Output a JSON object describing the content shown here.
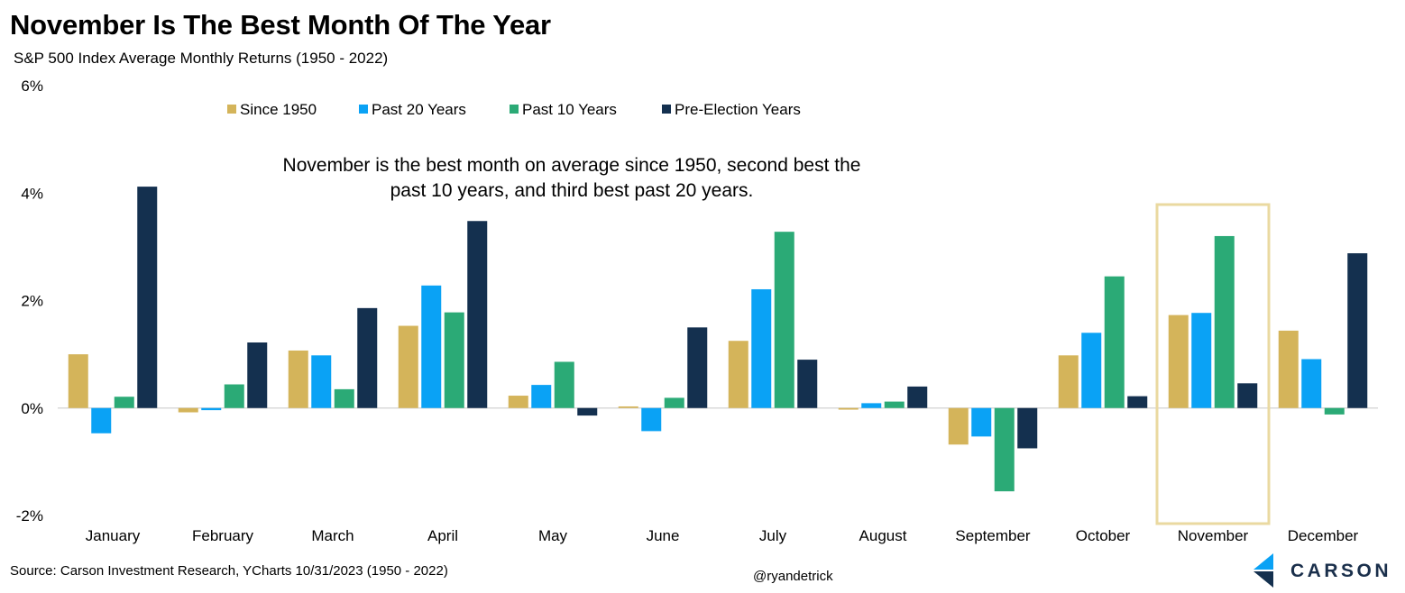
{
  "title": "November Is The Best Month Of The Year",
  "subtitle": "S&P 500 Index Average Monthly Returns (1950 - 2022)",
  "source": "Source: Carson Investment Research, YCharts 10/31/2023 (1950 - 2022)",
  "handle": "@ryandetrick",
  "brand": {
    "name": "CARSON",
    "logo_icon": "carson-chevron-logo-icon"
  },
  "chart_data": {
    "type": "bar",
    "categories": [
      "January",
      "February",
      "March",
      "April",
      "May",
      "June",
      "July",
      "August",
      "September",
      "October",
      "November",
      "December"
    ],
    "series": [
      {
        "name": "Since 1950",
        "color": "#d4b45a",
        "values": [
          1.0,
          -0.08,
          1.07,
          1.53,
          0.23,
          0.03,
          1.25,
          -0.03,
          -0.68,
          0.98,
          1.73,
          1.44
        ]
      },
      {
        "name": "Past 20 Years",
        "color": "#0aa2f5",
        "values": [
          -0.47,
          -0.04,
          0.98,
          2.28,
          0.43,
          -0.43,
          2.21,
          0.09,
          -0.53,
          1.4,
          1.77,
          0.91
        ]
      },
      {
        "name": "Past 10 Years",
        "color": "#2baa76",
        "values": [
          0.21,
          0.44,
          0.35,
          1.78,
          0.86,
          0.19,
          3.28,
          0.12,
          -1.55,
          2.45,
          3.2,
          -0.12
        ]
      },
      {
        "name": "Pre-Election Years",
        "color": "#14304f",
        "values": [
          4.12,
          1.22,
          1.86,
          3.48,
          -0.14,
          1.5,
          0.9,
          0.4,
          -0.75,
          0.22,
          0.46,
          2.88
        ]
      }
    ],
    "yticks": [
      "6%",
      "4%",
      "2%",
      "0%",
      "-2%"
    ],
    "ylim": [
      -2,
      6
    ],
    "highlight": {
      "category": "November",
      "color": "#ead9a0"
    },
    "annotation": [
      "November is the best month on average since 1950, second best the",
      "past 10 years, and third best past 20 years."
    ],
    "legend_position": "top"
  }
}
